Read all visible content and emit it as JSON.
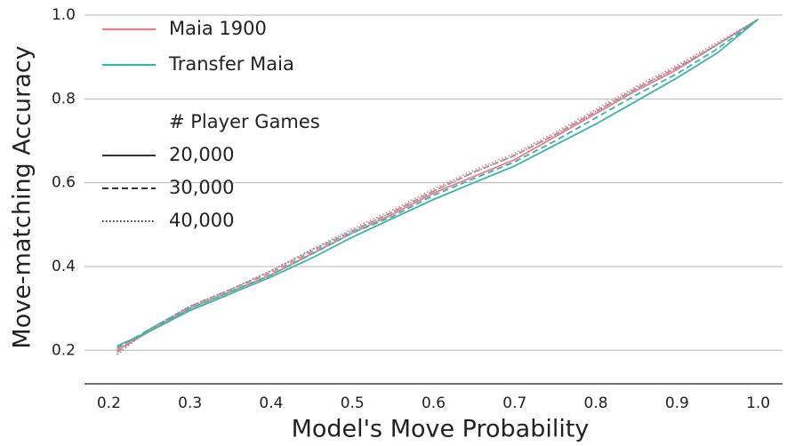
{
  "chart_data": {
    "type": "line",
    "xlabel": "Model's Move Probability",
    "ylabel": "Move-matching Accuracy",
    "x": [
      0.21,
      0.25,
      0.3,
      0.35,
      0.4,
      0.45,
      0.5,
      0.55,
      0.6,
      0.65,
      0.7,
      0.75,
      0.8,
      0.85,
      0.9,
      0.95,
      1.0
    ],
    "series": [
      {
        "name": "Maia 1900",
        "games": "20,000",
        "color": "#ee7a8c",
        "dash": "solid",
        "values": [
          0.2,
          0.245,
          0.3,
          0.34,
          0.38,
          0.43,
          0.48,
          0.525,
          0.575,
          0.615,
          0.655,
          0.71,
          0.765,
          0.82,
          0.87,
          0.93,
          0.99
        ]
      },
      {
        "name": "Maia 1900",
        "games": "30,000",
        "color": "#ee7a8c",
        "dash": "dashed",
        "values": [
          0.195,
          0.25,
          0.305,
          0.345,
          0.385,
          0.435,
          0.485,
          0.53,
          0.58,
          0.625,
          0.665,
          0.715,
          0.77,
          0.825,
          0.875,
          0.93,
          0.99
        ]
      },
      {
        "name": "Maia 1900",
        "games": "40,000",
        "color": "#ee7a8c",
        "dash": "dotted",
        "values": [
          0.2,
          0.25,
          0.305,
          0.345,
          0.39,
          0.44,
          0.49,
          0.535,
          0.585,
          0.63,
          0.67,
          0.72,
          0.775,
          0.83,
          0.88,
          0.935,
          0.99
        ]
      },
      {
        "name": "Transfer Maia",
        "games": "20,000",
        "color": "#3db3a6",
        "dash": "solid",
        "values": [
          0.21,
          0.245,
          0.295,
          0.335,
          0.375,
          0.42,
          0.47,
          0.515,
          0.56,
          0.6,
          0.64,
          0.69,
          0.74,
          0.795,
          0.85,
          0.91,
          0.99
        ]
      },
      {
        "name": "Transfer Maia",
        "games": "30,000",
        "color": "#3db3a6",
        "dash": "dashed",
        "values": [
          0.205,
          0.25,
          0.3,
          0.34,
          0.38,
          0.43,
          0.48,
          0.52,
          0.57,
          0.61,
          0.65,
          0.7,
          0.755,
          0.81,
          0.86,
          0.92,
          0.99
        ]
      },
      {
        "name": "Transfer Maia",
        "games": "40,000",
        "color": "#3db3a6",
        "dash": "dotted",
        "values": [
          0.19,
          0.25,
          0.305,
          0.345,
          0.39,
          0.44,
          0.485,
          0.53,
          0.58,
          0.625,
          0.665,
          0.715,
          0.77,
          0.825,
          0.875,
          0.93,
          0.99
        ]
      }
    ],
    "legend": {
      "position": "upper left",
      "models": [
        {
          "label": "Maia 1900",
          "color": "#ee7a8c"
        },
        {
          "label": "Transfer Maia",
          "color": "#3db3a6"
        }
      ],
      "style_title": "# Player Games",
      "styles": [
        {
          "label": "20,000",
          "dash": "solid"
        },
        {
          "label": "30,000",
          "dash": "dashed"
        },
        {
          "label": "40,000",
          "dash": "dotted"
        }
      ]
    },
    "xlim": [
      0.17,
      1.03
    ],
    "ylim": [
      0.12,
      1.0
    ],
    "xticks": [
      0.2,
      0.3,
      0.4,
      0.5,
      0.6,
      0.7,
      0.8,
      0.9,
      {
        "value": 1.0,
        "label": "1.0"
      }
    ],
    "yticks": [
      0.2,
      0.4,
      0.6,
      0.8,
      {
        "value": 1.0,
        "label": "1.0"
      }
    ],
    "grid": "y"
  }
}
